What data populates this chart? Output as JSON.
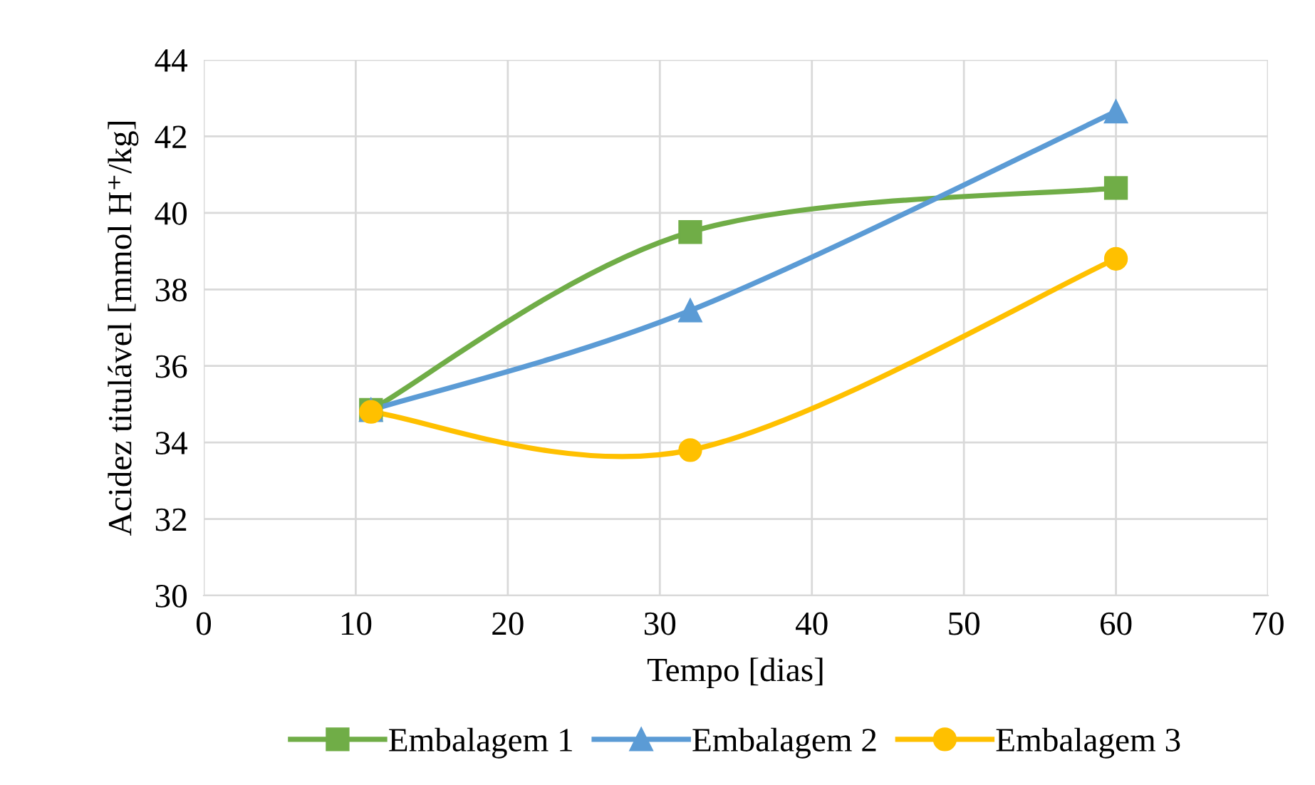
{
  "chart_data": {
    "type": "line",
    "xlabel": "Tempo [dias]",
    "ylabel": "Acidez titulável [mmol H⁺/kg]",
    "x": [
      11,
      32,
      60
    ],
    "series": [
      {
        "name": "Embalagem 1",
        "color": "#70ad47",
        "marker": "square",
        "values": [
          34.85,
          39.5,
          40.65
        ]
      },
      {
        "name": "Embalagem 2",
        "color": "#5b9bd5",
        "marker": "triangle",
        "values": [
          34.85,
          37.45,
          42.65
        ]
      },
      {
        "name": "Embalagem 3",
        "color": "#ffc000",
        "marker": "circle",
        "values": [
          34.8,
          33.8,
          38.8
        ]
      }
    ],
    "xlim": [
      0,
      70
    ],
    "xticks": [
      0,
      10,
      20,
      30,
      40,
      50,
      60,
      70
    ],
    "ylim": [
      30,
      44
    ],
    "yticks": [
      30,
      32,
      34,
      36,
      38,
      40,
      42,
      44
    ],
    "grid": true,
    "legend": "bottom",
    "line_style": "solid"
  }
}
